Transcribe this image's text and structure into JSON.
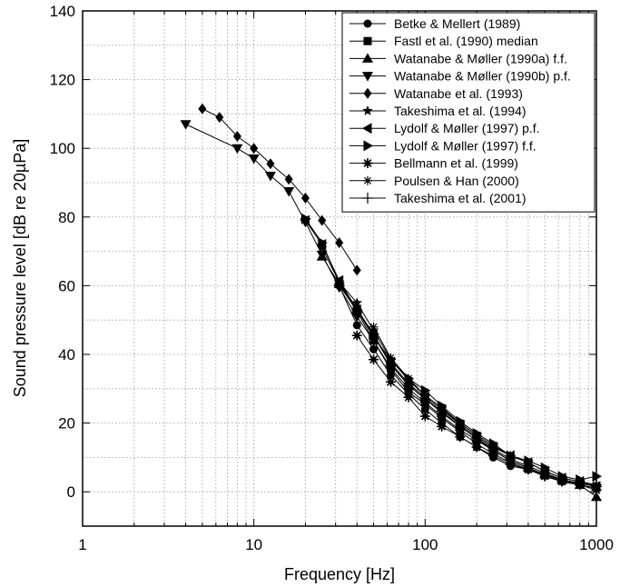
{
  "chart_data": {
    "type": "line",
    "title": "",
    "xlabel": "Frequency [Hz]",
    "ylabel": "Sound pressure level [dB re 20µPa]",
    "xscale": "log",
    "xlim": [
      1,
      1000
    ],
    "ylim": [
      -10,
      140
    ],
    "x_ticks": [
      1,
      10,
      100,
      1000
    ],
    "x_tick_labels": [
      "1",
      "10",
      "100",
      "1000"
    ],
    "y_ticks": [
      0,
      20,
      40,
      60,
      80,
      100,
      120,
      140
    ],
    "y_tick_labels": [
      "0",
      "20",
      "40",
      "60",
      "80",
      "100",
      "120",
      "140"
    ],
    "grid": true,
    "legend_position": "top-right",
    "series": [
      {
        "name": "Betke & Mellert (1989)",
        "marker": "circle",
        "x": [
          31.5,
          40,
          50,
          63,
          80,
          100,
          125,
          160,
          200,
          250,
          315,
          400,
          500,
          630,
          800,
          1000
        ],
        "y": [
          60,
          48.5,
          41.5,
          34,
          28.5,
          24,
          20,
          16,
          13,
          10,
          7.5,
          6.5,
          5,
          3,
          2,
          1
        ]
      },
      {
        "name": "Fastl et al. (1990) median",
        "marker": "square",
        "x": [
          31.5,
          40,
          50,
          63,
          80,
          100,
          125,
          160,
          200,
          250,
          315,
          400,
          500,
          630,
          800,
          1000
        ],
        "y": [
          60.5,
          52.5,
          44,
          36,
          30,
          26,
          22,
          18,
          15,
          12,
          9,
          7,
          5,
          3.5,
          2.5,
          1.5
        ]
      },
      {
        "name": "Watanabe & Møller (1990a) f.f.",
        "marker": "triangle-up",
        "x": [
          25,
          31.5,
          40,
          50,
          63,
          80,
          100,
          125,
          160,
          200,
          250,
          315,
          400,
          500,
          630,
          800,
          1000
        ],
        "y": [
          68.5,
          60.5,
          53.5,
          45.5,
          37,
          31,
          27,
          23,
          19,
          15.5,
          12,
          9,
          7,
          5,
          3.5,
          2,
          -1.5
        ]
      },
      {
        "name": "Watanabe & Møller (1990b) p.f.",
        "marker": "triangle-down",
        "x": [
          4,
          8,
          10,
          12.5,
          16,
          20,
          25,
          31.5,
          40,
          50,
          63,
          80,
          100,
          125,
          160,
          200,
          250,
          315,
          400,
          500,
          630,
          800,
          1000
        ],
        "y": [
          107,
          100,
          97,
          92,
          87.5,
          78.5,
          69,
          59.5,
          51,
          44,
          35.5,
          29,
          25.5,
          21.5,
          17.5,
          14,
          11,
          8.5,
          6.5,
          4.5,
          3,
          2,
          1
        ]
      },
      {
        "name": "Watanabe et al. (1993)",
        "marker": "diamond",
        "x": [
          5,
          6.3,
          8,
          10,
          12.5,
          16,
          20,
          25,
          31.5,
          40
        ],
        "y": [
          111.5,
          109,
          103.5,
          100,
          95.5,
          91,
          85.5,
          79,
          72.5,
          64.5
        ]
      },
      {
        "name": "Takeshima et al. (1994)",
        "marker": "star",
        "x": [
          25,
          31.5,
          40,
          50,
          63,
          80,
          100,
          125,
          160,
          200,
          250
        ],
        "y": [
          71,
          61,
          55,
          47,
          38.5,
          32.5,
          28,
          24.5,
          19.5,
          16,
          13
        ]
      },
      {
        "name": "Lydolf & Møller (1997) p.f.",
        "marker": "triangle-left",
        "x": [
          20,
          25,
          31.5,
          40,
          50,
          63,
          80,
          100,
          125,
          160,
          200,
          250,
          315,
          400,
          500,
          630,
          800,
          1000
        ],
        "y": [
          79,
          72,
          61.5,
          53,
          45.5,
          37.5,
          31.5,
          27.5,
          24,
          19.5,
          16,
          13,
          10.5,
          8.5,
          6,
          4,
          3,
          1.5
        ]
      },
      {
        "name": "Lydolf & Møller (1997) f.f.",
        "marker": "triangle-right",
        "x": [
          20,
          25,
          31.5,
          40,
          50,
          63,
          80,
          100,
          125,
          160,
          200,
          250,
          315,
          400,
          500,
          630,
          800,
          1000
        ],
        "y": [
          79.5,
          72.5,
          61,
          53,
          45,
          38.5,
          33,
          29.5,
          25,
          20.5,
          17,
          14,
          10.5,
          9,
          7,
          4.5,
          3.5,
          4.5
        ]
      },
      {
        "name": "Bellmann et al. (1999)",
        "marker": "burst",
        "x": [
          40,
          50,
          63,
          80,
          100,
          125,
          160,
          200,
          250,
          315,
          400,
          500,
          630,
          800,
          1000
        ],
        "y": [
          45.5,
          38.5,
          32,
          27.5,
          22,
          19,
          16,
          13,
          10.5,
          8,
          6.5,
          4.5,
          3,
          2,
          0.5
        ]
      },
      {
        "name": "Poulsen & Han (2000)",
        "marker": "asterisk",
        "x": [
          50,
          63,
          80,
          100,
          125,
          160,
          200,
          250,
          315,
          400,
          500,
          630,
          800,
          1000
        ],
        "y": [
          48,
          39,
          33,
          28,
          24.5,
          20,
          16.5,
          13.5,
          10.5,
          8.5,
          6,
          4,
          3,
          2
        ]
      },
      {
        "name": "Takeshima et al. (2001)",
        "marker": "plus",
        "x": [
          31.5,
          40,
          50,
          63,
          80,
          100,
          125,
          160,
          200,
          250,
          315,
          400,
          500,
          630,
          800,
          1000
        ],
        "y": [
          60,
          53,
          46,
          37,
          31,
          27,
          23.5,
          19,
          15.5,
          12.5,
          9.5,
          7.5,
          5.5,
          3.5,
          2.5,
          1.5
        ]
      }
    ]
  }
}
